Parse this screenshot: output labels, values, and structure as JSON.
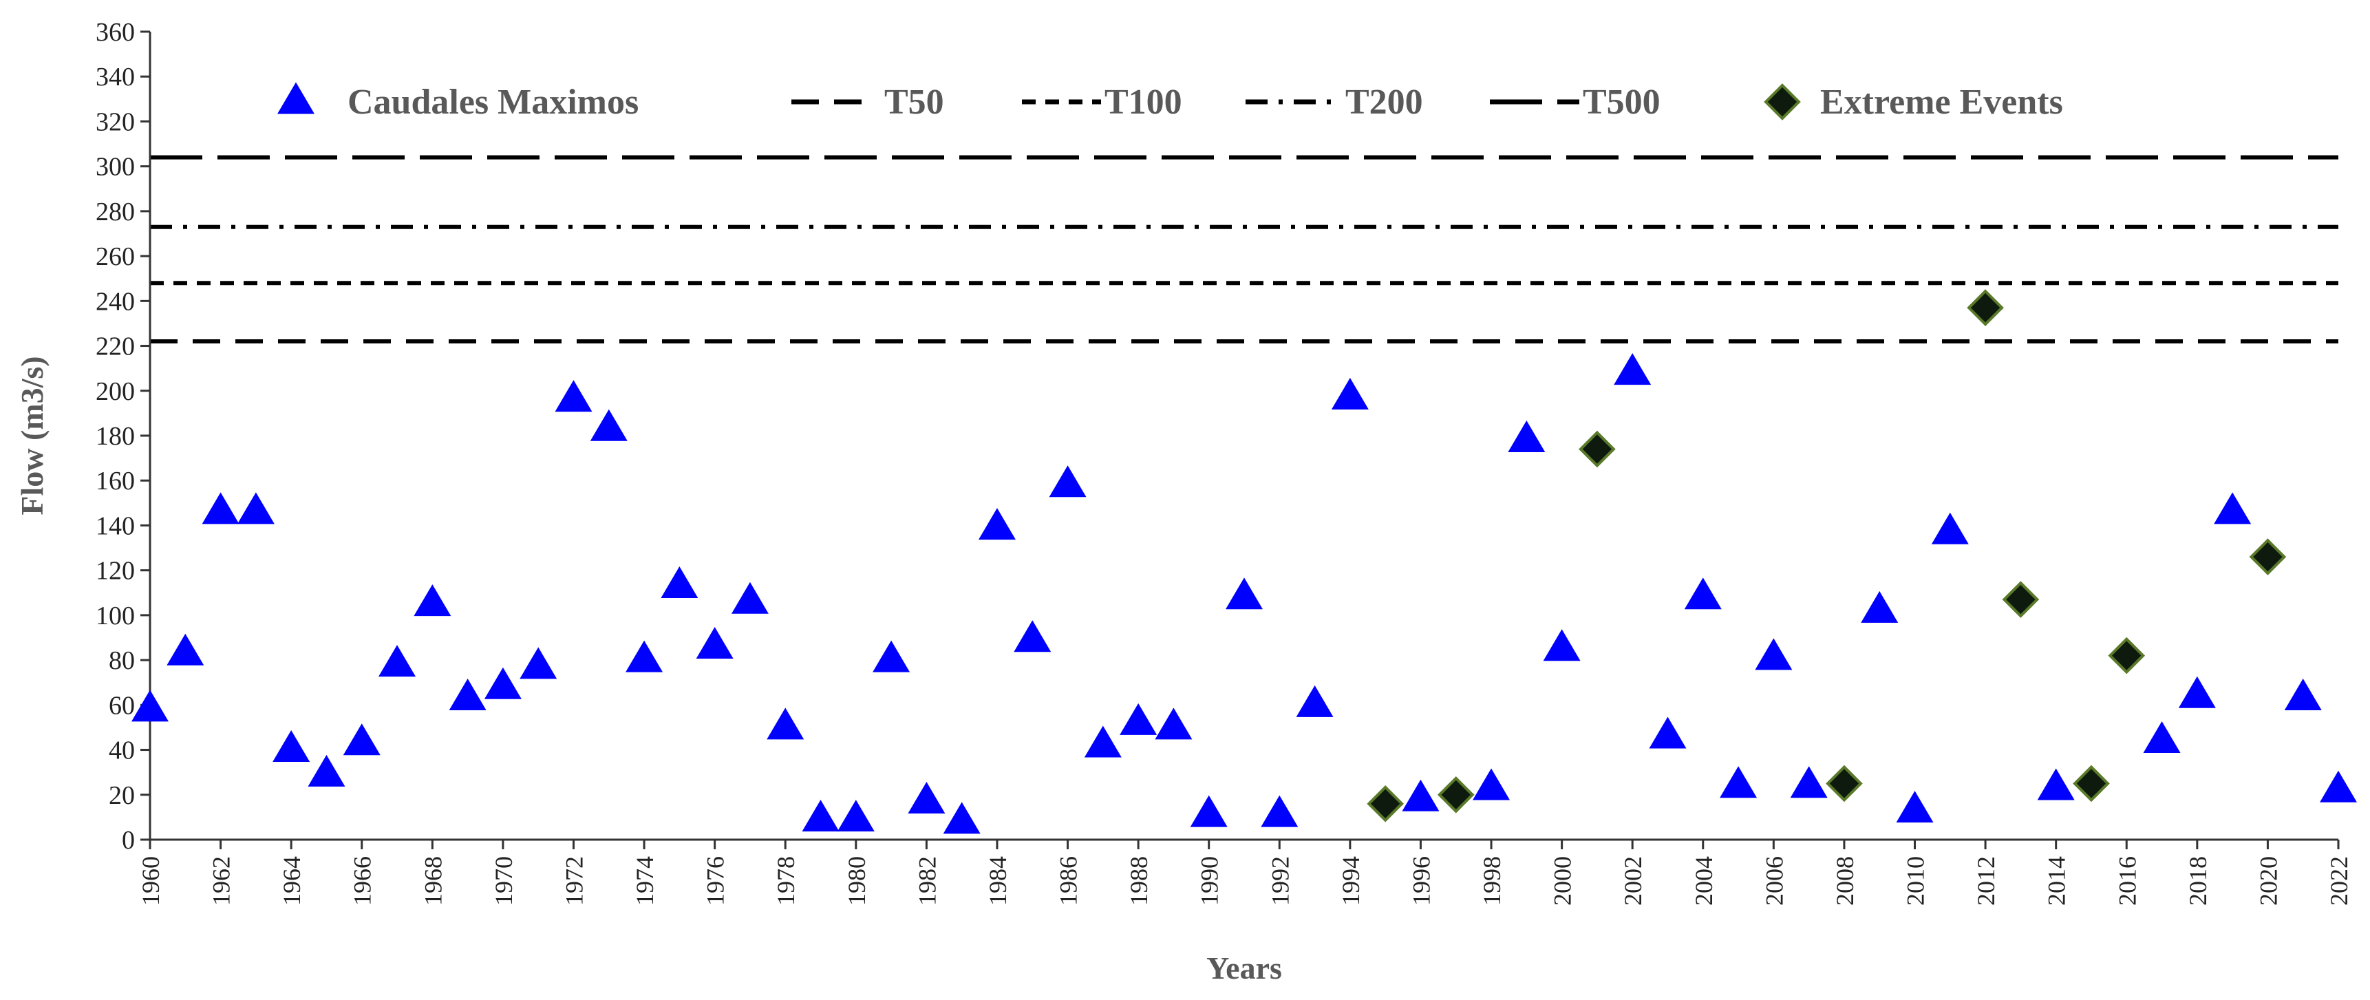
{
  "chart_data": {
    "type": "scatter",
    "title": "",
    "xlabel": "Years",
    "ylabel": "Flow (m3/s)",
    "xlim": [
      1960,
      2022
    ],
    "ylim": [
      0,
      360
    ],
    "x_tick_step": 2,
    "y_tick_step": 20,
    "grid": false,
    "legend_placement": "top",
    "series": [
      {
        "name": "Caudales Maximos",
        "marker": "triangle",
        "color": "#0000ff",
        "points": [
          [
            1960,
            58
          ],
          [
            1961,
            83
          ],
          [
            1962,
            146
          ],
          [
            1963,
            146
          ],
          [
            1964,
            40
          ],
          [
            1965,
            29
          ],
          [
            1966,
            43
          ],
          [
            1967,
            78
          ],
          [
            1968,
            105
          ],
          [
            1969,
            63
          ],
          [
            1970,
            68
          ],
          [
            1971,
            77
          ],
          [
            1972,
            196
          ],
          [
            1973,
            183
          ],
          [
            1974,
            80
          ],
          [
            1975,
            113
          ],
          [
            1976,
            86
          ],
          [
            1977,
            106
          ],
          [
            1978,
            50
          ],
          [
            1979,
            9
          ],
          [
            1980,
            9
          ],
          [
            1981,
            80
          ],
          [
            1982,
            17
          ],
          [
            1983,
            8
          ],
          [
            1984,
            139
          ],
          [
            1985,
            89
          ],
          [
            1986,
            158
          ],
          [
            1987,
            42
          ],
          [
            1988,
            52
          ],
          [
            1989,
            50
          ],
          [
            1990,
            11
          ],
          [
            1991,
            108
          ],
          [
            1992,
            11
          ],
          [
            1993,
            60
          ],
          [
            1994,
            197
          ],
          [
            1996,
            18
          ],
          [
            1998,
            23
          ],
          [
            1999,
            178
          ],
          [
            2000,
            85
          ],
          [
            2002,
            208
          ],
          [
            2003,
            46
          ],
          [
            2004,
            108
          ],
          [
            2005,
            24
          ],
          [
            2006,
            81
          ],
          [
            2007,
            24
          ],
          [
            2009,
            102
          ],
          [
            2010,
            13
          ],
          [
            2011,
            137
          ],
          [
            2014,
            23
          ],
          [
            2017,
            44
          ],
          [
            2018,
            64
          ],
          [
            2019,
            146
          ],
          [
            2021,
            63
          ],
          [
            2022,
            22
          ]
        ]
      },
      {
        "name": "Extreme Events",
        "marker": "diamond",
        "color": "#0d1a0d",
        "edge_color": "#5a7a2a",
        "points": [
          [
            1995,
            16
          ],
          [
            1997,
            20
          ],
          [
            2001,
            174
          ],
          [
            2008,
            25
          ],
          [
            2012,
            237
          ],
          [
            2013,
            107
          ],
          [
            2015,
            25
          ],
          [
            2016,
            82
          ],
          [
            2020,
            126
          ]
        ]
      }
    ],
    "reference_lines": [
      {
        "name": "T50",
        "y": 222,
        "dash": "dash"
      },
      {
        "name": "T100",
        "y": 248,
        "dash": "short-dash"
      },
      {
        "name": "T200",
        "y": 273,
        "dash": "dash-dot"
      },
      {
        "name": "T500",
        "y": 304,
        "dash": "long-dash"
      }
    ],
    "legend": [
      {
        "label": "Caudales Maximos",
        "kind": "triangle"
      },
      {
        "label": "T50",
        "kind": "dash"
      },
      {
        "label": "T100",
        "kind": "short-dash"
      },
      {
        "label": "T200",
        "kind": "dash-dot"
      },
      {
        "label": "T500",
        "kind": "long-dash"
      },
      {
        "label": "Extreme Events",
        "kind": "diamond"
      }
    ]
  }
}
